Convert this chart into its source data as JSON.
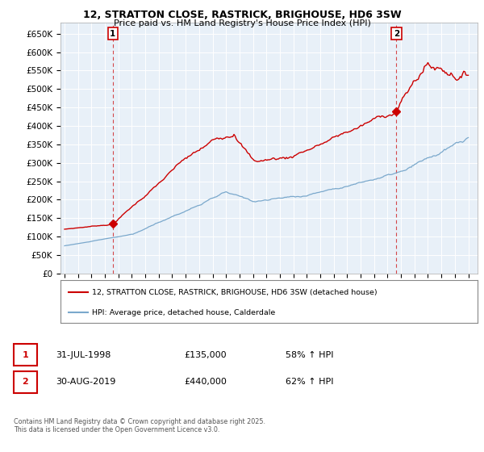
{
  "title_line1": "12, STRATTON CLOSE, RASTRICK, BRIGHOUSE, HD6 3SW",
  "title_line2": "Price paid vs. HM Land Registry's House Price Index (HPI)",
  "legend_label_red": "12, STRATTON CLOSE, RASTRICK, BRIGHOUSE, HD6 3SW (detached house)",
  "legend_label_blue": "HPI: Average price, detached house, Calderdale",
  "transaction1_date": "31-JUL-1998",
  "transaction1_price": "£135,000",
  "transaction1_hpi": "58% ↑ HPI",
  "transaction2_date": "30-AUG-2019",
  "transaction2_price": "£440,000",
  "transaction2_hpi": "62% ↑ HPI",
  "footnote": "Contains HM Land Registry data © Crown copyright and database right 2025.\nThis data is licensed under the Open Government Licence v3.0.",
  "red_color": "#cc0000",
  "blue_color": "#7aa8cc",
  "chart_bg": "#e8f0f8",
  "grid_color": "#ffffff",
  "background_color": "#ffffff",
  "ylim": [
    0,
    680000
  ],
  "yticks": [
    0,
    50000,
    100000,
    150000,
    200000,
    250000,
    300000,
    350000,
    400000,
    450000,
    500000,
    550000,
    600000,
    650000
  ],
  "ytick_labels": [
    "£0",
    "£50K",
    "£100K",
    "£150K",
    "£200K",
    "£250K",
    "£300K",
    "£350K",
    "£400K",
    "£450K",
    "£500K",
    "£550K",
    "£600K",
    "£650K"
  ],
  "xtick_years": [
    1995,
    1996,
    1997,
    1998,
    1999,
    2000,
    2001,
    2002,
    2003,
    2004,
    2005,
    2006,
    2007,
    2008,
    2009,
    2010,
    2011,
    2012,
    2013,
    2014,
    2015,
    2016,
    2017,
    2018,
    2019,
    2020,
    2021,
    2022,
    2023,
    2024,
    2025
  ],
  "marker1_x": 1998.58,
  "marker1_y": 135000,
  "marker2_x": 2019.66,
  "marker2_y": 440000,
  "xlim_left": 1994.7,
  "xlim_right": 2025.7
}
